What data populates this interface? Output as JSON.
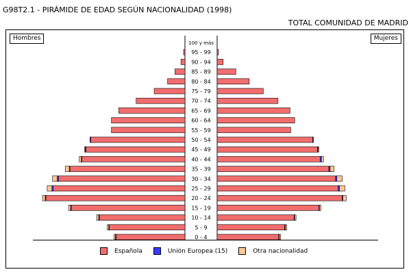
{
  "header": {
    "title": "G98T2.1 - PIRÁMIDE DE EDAD SEGÚN NACIONALIDAD (1998)",
    "region": "TOTAL COMUNIDAD DE MADRID"
  },
  "labels": {
    "men": "Hombres",
    "women": "Mujeres"
  },
  "colors": {
    "espanola": "#f26d6d",
    "ue": "#3b3bff",
    "otra": "#ffc896"
  },
  "legend": [
    {
      "label": "Española",
      "color": "#f26d6d"
    },
    {
      "label": "Unión Europea (15)",
      "color": "#3b3bff"
    },
    {
      "label": "Otra nacionalidad",
      "color": "#ffc896"
    }
  ],
  "chart_data": {
    "type": "bar",
    "orientation": "horizontal-pyramid",
    "title": "G98T2.1 - PIRÁMIDE DE EDAD SEGÚN NACIONALIDAD (1998)",
    "x_scale": [
      0,
      210
    ],
    "grid": false,
    "categories": [
      "0 - 4",
      "5 - 9",
      "10 - 14",
      "15 - 19",
      "20 - 24",
      "25 - 29",
      "30 - 34",
      "35 - 39",
      "40 - 44",
      "45 - 49",
      "50 - 54",
      "55 - 59",
      "60 - 64",
      "65 - 69",
      "70 - 74",
      "75 - 79",
      "80 - 84",
      "85 - 89",
      "90 - 94",
      "95 - 99",
      "100 y más"
    ],
    "series": [
      {
        "name": "Española",
        "side": "Hombres",
        "values": [
          103,
          113,
          128,
          170,
          208,
          197,
          189,
          172,
          154,
          148,
          141,
          110,
          110,
          99,
          73,
          46,
          26,
          15,
          6,
          2,
          0
        ]
      },
      {
        "name": "Unión Europea (15)",
        "side": "Hombres",
        "values": [
          1,
          1,
          1,
          1,
          1,
          2,
          2,
          1,
          1,
          1,
          1,
          0,
          0,
          0,
          0,
          0,
          0,
          0,
          0,
          0,
          0
        ]
      },
      {
        "name": "Otra nacionalidad",
        "side": "Hombres",
        "values": [
          2,
          2,
          3,
          3,
          4,
          7,
          7,
          6,
          3,
          1,
          0,
          0,
          0,
          0,
          0,
          0,
          0,
          0,
          0,
          0,
          0
        ]
      },
      {
        "name": "Española",
        "side": "Mujeres",
        "values": [
          92,
          101,
          115,
          152,
          187,
          181,
          177,
          167,
          154,
          150,
          143,
          110,
          116,
          109,
          91,
          69,
          48,
          28,
          9,
          2,
          0
        ]
      },
      {
        "name": "Unión Europea (15)",
        "side": "Mujeres",
        "values": [
          1,
          1,
          1,
          1,
          1,
          2,
          2,
          2,
          2,
          1,
          1,
          0,
          0,
          0,
          0,
          0,
          0,
          0,
          0,
          0,
          0
        ]
      },
      {
        "name": "Otra nacionalidad",
        "side": "Mujeres",
        "values": [
          2,
          2,
          2,
          2,
          5,
          8,
          8,
          6,
          3,
          1,
          0,
          0,
          0,
          0,
          0,
          0,
          0,
          0,
          0,
          0,
          0
        ]
      }
    ]
  }
}
